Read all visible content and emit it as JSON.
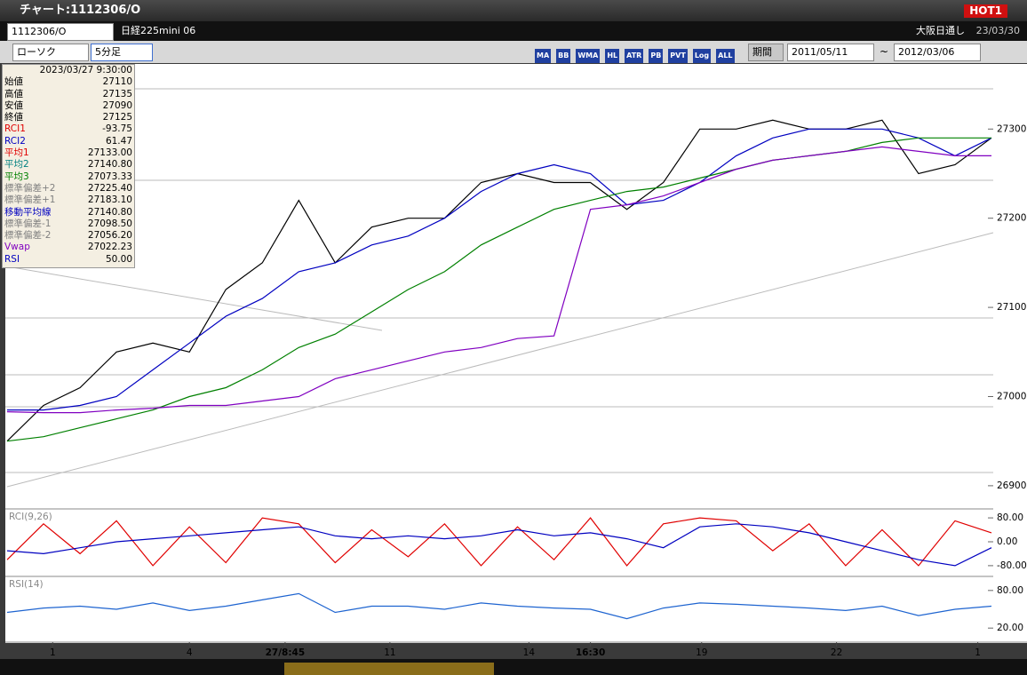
{
  "window": {
    "title": "チャート:1112306/O",
    "badge": "HOT1"
  },
  "header": {
    "symbol": "1112306/O",
    "name": "日経225mini 06",
    "session": "大阪日通し",
    "date": "23/03/30"
  },
  "toolbar": {
    "chart_type": "ローソク",
    "interval": "5分足",
    "buttons": [
      "MA",
      "BB",
      "WMA",
      "HL",
      "ATR",
      "PB",
      "PVT",
      "Log",
      "ALL"
    ],
    "period_button": "期間",
    "from": "2011/05/11",
    "separator": "~",
    "to": "2012/03/06"
  },
  "info_panel": {
    "datetime": "2023/03/27 9:30:00",
    "rows": [
      {
        "label": "始値",
        "value": "27110",
        "color": "#000000"
      },
      {
        "label": "高値",
        "value": "27135",
        "color": "#000000"
      },
      {
        "label": "安値",
        "value": "27090",
        "color": "#000000"
      },
      {
        "label": "終値",
        "value": "27125",
        "color": "#000000"
      },
      {
        "label": "RCI1",
        "value": "-93.75",
        "color": "#e00000"
      },
      {
        "label": "RCI2",
        "value": "61.47",
        "color": "#0000c0"
      },
      {
        "label": "平均1",
        "value": "27133.00",
        "color": "#e00000"
      },
      {
        "label": "平均2",
        "value": "27140.80",
        "color": "#008080"
      },
      {
        "label": "平均3",
        "value": "27073.33",
        "color": "#008000"
      },
      {
        "label": "標準偏差+2",
        "value": "27225.40",
        "color": "#808080"
      },
      {
        "label": "標準偏差+1",
        "value": "27183.10",
        "color": "#808080"
      },
      {
        "label": "移動平均線",
        "value": "27140.80",
        "color": "#0000c0"
      },
      {
        "label": "標準偏差-1",
        "value": "27098.50",
        "color": "#808080"
      },
      {
        "label": "標準偏差-2",
        "value": "27056.20",
        "color": "#808080"
      },
      {
        "label": "Vwap",
        "value": "27022.23",
        "color": "#8000c0"
      },
      {
        "label": "RSI",
        "value": "50.00",
        "color": "#0000c0"
      }
    ]
  },
  "chart_data": [
    {
      "type": "line",
      "x": [
        0,
        8,
        16,
        24,
        32,
        40,
        48,
        56,
        64,
        72,
        80,
        88,
        96,
        104,
        112,
        120,
        128,
        136,
        144,
        152,
        160,
        168,
        176,
        184,
        192,
        200,
        208,
        216
      ],
      "xlim": [
        0,
        216
      ],
      "xticks": [
        {
          "value": 10,
          "label": "1"
        },
        {
          "value": 40,
          "label": "4"
        },
        {
          "value": 61,
          "label": "27/8:45"
        },
        {
          "value": 84,
          "label": "11"
        },
        {
          "value": 114.5,
          "label": "14"
        },
        {
          "value": 128,
          "label": "16:30"
        },
        {
          "value": 152.4,
          "label": "19"
        },
        {
          "value": 182,
          "label": "22"
        },
        {
          "value": 213,
          "label": "1"
        }
      ],
      "ylim": [
        26875,
        27373
      ],
      "yticks": [
        27300,
        27200,
        27100,
        27000,
        26900
      ],
      "series": [
        {
          "color": "#000000",
          "values": [
            26950,
            26990,
            27010,
            27050,
            27060,
            27050,
            27120,
            27150,
            27220,
            27150,
            27190,
            27200,
            27200,
            27240,
            27250,
            27240,
            27240,
            27210,
            27240,
            27300,
            27300,
            27310,
            27300,
            27300,
            27310,
            27250,
            27260,
            27290
          ]
        },
        {
          "color": "#0000c0",
          "values": [
            26985,
            26985,
            26990,
            27000,
            27030,
            27060,
            27090,
            27110,
            27140,
            27150,
            27170,
            27180,
            27200,
            27230,
            27250,
            27260,
            27250,
            27215,
            27220,
            27240,
            27270,
            27290,
            27300,
            27300,
            27300,
            27290,
            27270,
            27290
          ]
        },
        {
          "color": "#008000",
          "values": [
            26950,
            26955,
            26965,
            26975,
            26985,
            27000,
            27010,
            27030,
            27055,
            27070,
            27095,
            27120,
            27140,
            27170,
            27190,
            27210,
            27220,
            27230,
            27235,
            27245,
            27255,
            27265,
            27270,
            27275,
            27285,
            27290,
            27290,
            27290
          ]
        },
        {
          "color": "#8000c0",
          "values": [
            26983,
            26982,
            26982,
            26985,
            26987,
            26990,
            26990,
            26995,
            27000,
            27020,
            27030,
            27040,
            27050,
            27055,
            27065,
            27068,
            27210,
            27215,
            27225,
            27240,
            27255,
            27265,
            27270,
            27275,
            27280,
            27275,
            27270,
            27270
          ]
        }
      ]
    },
    {
      "type": "line",
      "title": "RCI(9,26)",
      "x": [
        0,
        8,
        16,
        24,
        32,
        40,
        48,
        56,
        64,
        72,
        80,
        88,
        96,
        104,
        112,
        120,
        128,
        136,
        144,
        152,
        160,
        168,
        176,
        184,
        192,
        200,
        208,
        216
      ],
      "xlim": [
        0,
        216
      ],
      "ylim": [
        -113,
        107
      ],
      "yticks": [
        {
          "value": 80,
          "label": "80.00"
        },
        {
          "value": 0,
          "label": "0.00"
        },
        {
          "value": -80,
          "label": "-80.00"
        }
      ],
      "series": [
        {
          "color": "#e00000",
          "values": [
            -60,
            60,
            -40,
            70,
            -80,
            50,
            -70,
            80,
            60,
            -70,
            40,
            -50,
            60,
            -80,
            50,
            -60,
            80,
            -80,
            60,
            80,
            70,
            -30,
            60,
            -80,
            40,
            -80,
            70,
            30
          ]
        },
        {
          "color": "#0000c0",
          "values": [
            -30,
            -40,
            -20,
            0,
            10,
            20,
            30,
            40,
            50,
            20,
            10,
            20,
            10,
            20,
            40,
            20,
            30,
            10,
            -20,
            50,
            60,
            50,
            30,
            0,
            -30,
            -60,
            -80,
            -20
          ]
        }
      ]
    },
    {
      "type": "line",
      "title": "RSI(14)",
      "x": [
        0,
        8,
        16,
        24,
        32,
        40,
        48,
        56,
        64,
        72,
        80,
        88,
        96,
        104,
        112,
        120,
        128,
        136,
        144,
        152,
        160,
        168,
        176,
        184,
        192,
        200,
        208,
        216
      ],
      "xlim": [
        0,
        216
      ],
      "ylim": [
        -1,
        101
      ],
      "yticks": [
        {
          "value": 80,
          "label": "80.00"
        },
        {
          "value": 20,
          "label": "20.00"
        }
      ],
      "series": [
        {
          "color": "#1e64d0",
          "values": [
            45,
            52,
            55,
            50,
            60,
            48,
            55,
            65,
            75,
            45,
            55,
            55,
            50,
            60,
            55,
            52,
            50,
            35,
            52,
            60,
            58,
            55,
            52,
            48,
            55,
            40,
            50,
            55
          ]
        }
      ]
    }
  ]
}
